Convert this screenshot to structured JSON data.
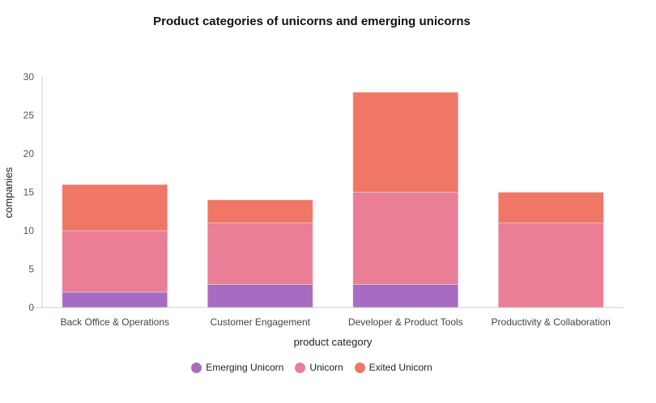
{
  "chart_data": {
    "type": "bar",
    "stacked": true,
    "title": "Product categories of unicorns and emerging unicorns",
    "xlabel": "product category",
    "ylabel": "companies",
    "ylim": [
      0,
      30
    ],
    "yticks": [
      0,
      5,
      10,
      15,
      20,
      25,
      30
    ],
    "categories": [
      "Back Office & Operations",
      "Customer Engagement",
      "Developer & Product Tools",
      "Productivity & Collaboration"
    ],
    "series": [
      {
        "name": "Emerging Unicorn",
        "color": "#a86bc2",
        "values": [
          2,
          3,
          3,
          0
        ]
      },
      {
        "name": "Unicorn",
        "color": "#e97e96",
        "values": [
          8,
          8,
          12,
          11
        ]
      },
      {
        "name": "Exited Unicorn",
        "color": "#f07765",
        "values": [
          6,
          3,
          13,
          4
        ]
      }
    ],
    "legend_position": "bottom-center",
    "grid": false
  }
}
